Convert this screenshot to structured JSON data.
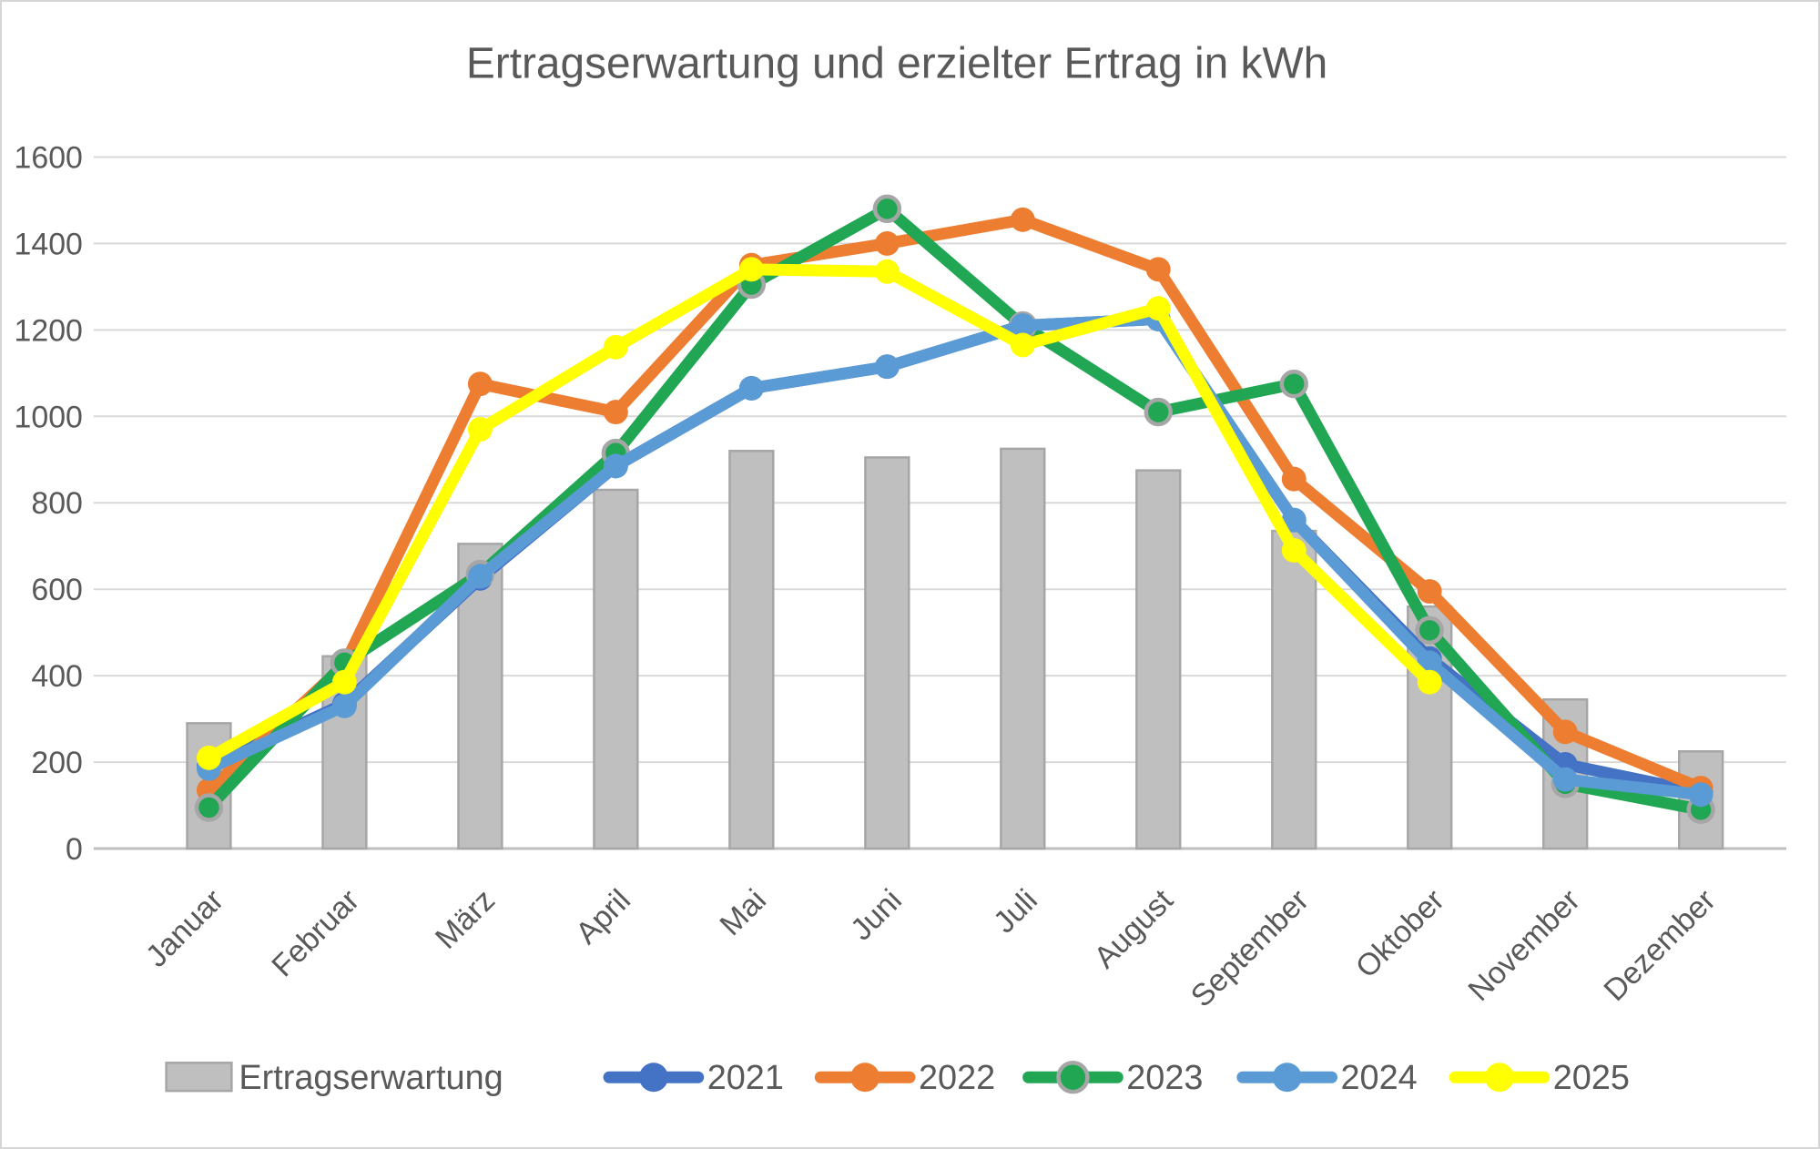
{
  "title": "Ertragserwartung und erzielter Ertrag in kWh",
  "chart_data": {
    "type": "bar+line",
    "title": "Ertragserwartung und erzielter Ertrag in kWh",
    "categories": [
      "Januar",
      "Februar",
      "März",
      "April",
      "Mai",
      "Juni",
      "Juli",
      "August",
      "September",
      "Oktober",
      "November",
      "Dezember"
    ],
    "bar_series": {
      "name": "Ertragserwartung",
      "values": [
        290,
        445,
        705,
        830,
        920,
        905,
        925,
        875,
        735,
        560,
        345,
        225
      ],
      "fill": "#BFBFBF",
      "border": "#A6A6A6"
    },
    "line_series": [
      {
        "name": "2021",
        "color": "#4472C4",
        "marker_ring": null,
        "values": [
          190,
          335,
          625,
          885,
          1065,
          1115,
          1210,
          1225,
          760,
          440,
          195,
          130
        ]
      },
      {
        "name": "2022",
        "color": "#ED7D31",
        "marker_ring": null,
        "values": [
          135,
          425,
          1075,
          1010,
          1350,
          1400,
          1455,
          1340,
          855,
          595,
          270,
          140
        ]
      },
      {
        "name": "2023",
        "color": "#21A653",
        "marker_ring": "#A6A6A6",
        "values": [
          95,
          430,
          635,
          915,
          1305,
          1480,
          1210,
          1010,
          1075,
          505,
          150,
          90
        ]
      },
      {
        "name": "2024",
        "color": "#5B9BD5",
        "marker_ring": null,
        "values": [
          185,
          330,
          630,
          885,
          1065,
          1115,
          1210,
          1225,
          760,
          430,
          160,
          125
        ]
      },
      {
        "name": "2025",
        "color": "#FFFF00",
        "marker_ring": null,
        "values": [
          210,
          385,
          970,
          1160,
          1340,
          1335,
          1165,
          1250,
          690,
          385,
          null,
          null
        ]
      }
    ],
    "xlabel": "",
    "ylabel": "",
    "ylim": [
      0,
      1600
    ],
    "ytick_step": 200,
    "y_tick_labels": [
      "0",
      "200",
      "400",
      "600",
      "800",
      "1000",
      "1200",
      "1400",
      "1600"
    ],
    "grid": true,
    "gridline_color": "#D9D9D9",
    "axis_line_color": "#BFBFBF",
    "text_color": "#595959",
    "legend_position": "bottom",
    "legend_items": [
      "Ertragserwartung",
      "2021",
      "2022",
      "2023",
      "2024",
      "2025"
    ]
  }
}
